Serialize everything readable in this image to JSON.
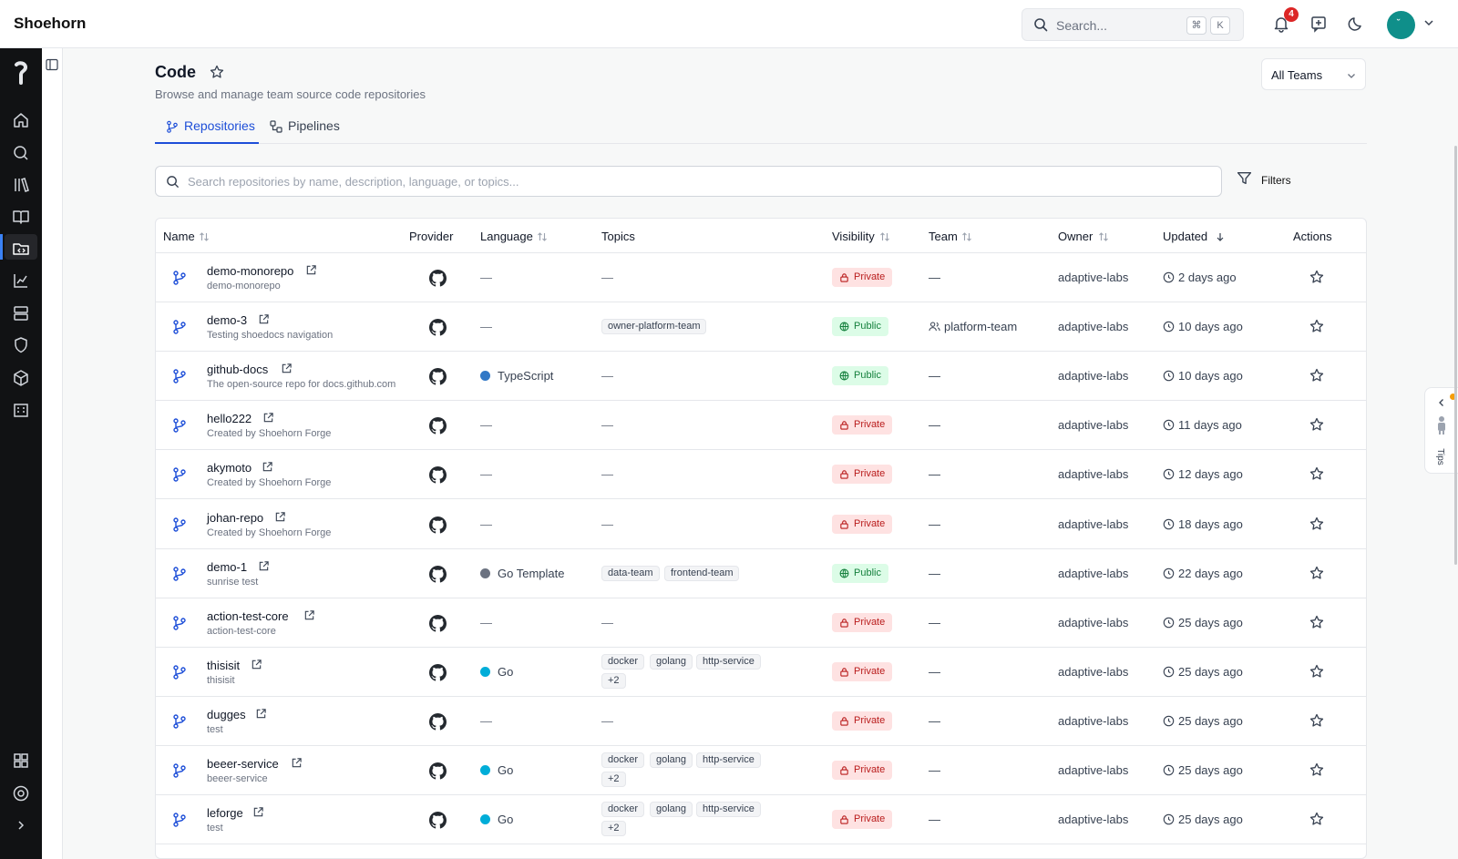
{
  "app": {
    "brand": "Shoehorn"
  },
  "topbar": {
    "search_placeholder": "Search...",
    "kbd_cmd": "⌘",
    "kbd_k": "K",
    "notification_count": "4",
    "avatar_initials": "˘"
  },
  "page": {
    "title": "Code",
    "subtitle": "Browse and manage team source code repositories",
    "team_select": "All Teams",
    "tabs": [
      {
        "label": "Repositories",
        "active": true
      },
      {
        "label": "Pipelines",
        "active": false
      }
    ],
    "repo_search_placeholder": "Search repositories by name, description, language, or topics...",
    "filters_label": "Filters"
  },
  "table": {
    "headers": {
      "name": "Name",
      "provider": "Provider",
      "language": "Language",
      "topics": "Topics",
      "visibility": "Visibility",
      "team": "Team",
      "owner": "Owner",
      "updated": "Updated",
      "actions": "Actions"
    },
    "rows": [
      {
        "name": "demo-monorepo",
        "desc": "demo-monorepo",
        "language": "—",
        "topics": "—",
        "visibility": "Private",
        "team": "—",
        "owner": "adaptive-labs",
        "updated": "2 days ago"
      },
      {
        "name": "demo-3",
        "desc": "Testing shoedocs navigation",
        "language": "—",
        "topic1": "owner-platform-team",
        "visibility": "Public",
        "team": "platform-team",
        "owner": "adaptive-labs",
        "updated": "10 days ago"
      },
      {
        "name": "github-docs",
        "desc": "The open-source repo for docs.github.com",
        "language": "TypeScript",
        "topics": "—",
        "visibility": "Public",
        "team": "—",
        "owner": "adaptive-labs",
        "updated": "10 days ago"
      },
      {
        "name": "hello222",
        "desc": "Created by Shoehorn Forge",
        "language": "—",
        "topics": "—",
        "visibility": "Private",
        "team": "—",
        "owner": "adaptive-labs",
        "updated": "11 days ago"
      },
      {
        "name": "akymoto",
        "desc": "Created by Shoehorn Forge",
        "language": "—",
        "topics": "—",
        "visibility": "Private",
        "team": "—",
        "owner": "adaptive-labs",
        "updated": "12 days ago"
      },
      {
        "name": "johan-repo",
        "desc": "Created by Shoehorn Forge",
        "language": "—",
        "topics": "—",
        "visibility": "Private",
        "team": "—",
        "owner": "adaptive-labs",
        "updated": "18 days ago"
      },
      {
        "name": "demo-1",
        "desc": "sunrise test",
        "language": "Go Template",
        "topic1": "data-team",
        "topic2": "frontend-team",
        "visibility": "Public",
        "team": "—",
        "owner": "adaptive-labs",
        "updated": "22 days ago"
      },
      {
        "name": "action-test-core",
        "desc": "action-test-core",
        "language": "—",
        "topics": "—",
        "visibility": "Private",
        "team": "—",
        "owner": "adaptive-labs",
        "updated": "25 days ago"
      },
      {
        "name": "thisisit",
        "desc": "thisisit",
        "language": "Go",
        "topic1": "docker",
        "topic2": "golang",
        "topic3": "http-service",
        "more": "+2",
        "visibility": "Private",
        "team": "—",
        "owner": "adaptive-labs",
        "updated": "25 days ago"
      },
      {
        "name": "dugges",
        "desc": "test",
        "language": "—",
        "topics": "—",
        "visibility": "Private",
        "team": "—",
        "owner": "adaptive-labs",
        "updated": "25 days ago"
      },
      {
        "name": "beeer-service",
        "desc": "beeer-service",
        "language": "Go",
        "topic1": "docker",
        "topic2": "golang",
        "topic3": "http-service",
        "more": "+2",
        "visibility": "Private",
        "team": "—",
        "owner": "adaptive-labs",
        "updated": "25 days ago"
      },
      {
        "name": "leforge",
        "desc": "test",
        "language": "Go",
        "topic1": "docker",
        "topic2": "golang",
        "topic3": "http-service",
        "more": "+2",
        "visibility": "Private",
        "team": "—",
        "owner": "adaptive-labs",
        "updated": "25 days ago"
      }
    ]
  },
  "colors": {
    "typescript": "#3178c6",
    "go": "#00add8",
    "go_template": "#6b7280",
    "private_bg": "#fee2e2",
    "public_bg": "#dcfce7",
    "accent": "#1d4ed8"
  },
  "tips": {
    "label": "Tips"
  },
  "icons": [
    "search-icon",
    "bell-icon",
    "feedback-icon",
    "moon-icon",
    "chevron-down-icon",
    "star-icon",
    "branch-icon",
    "pipeline-icon",
    "filter-icon",
    "repo-icon",
    "external-link-icon",
    "github-icon",
    "lock-icon",
    "globe-icon",
    "clock-icon",
    "users-icon",
    "home-icon",
    "library-icon",
    "book-icon",
    "code-folder-icon",
    "chart-icon",
    "server-icon",
    "shield-icon",
    "package-icon",
    "building-icon",
    "grid-icon",
    "help-icon",
    "chevron-right-icon",
    "sidebar-toggle-icon",
    "sort-icon",
    "sort-down-icon"
  ]
}
